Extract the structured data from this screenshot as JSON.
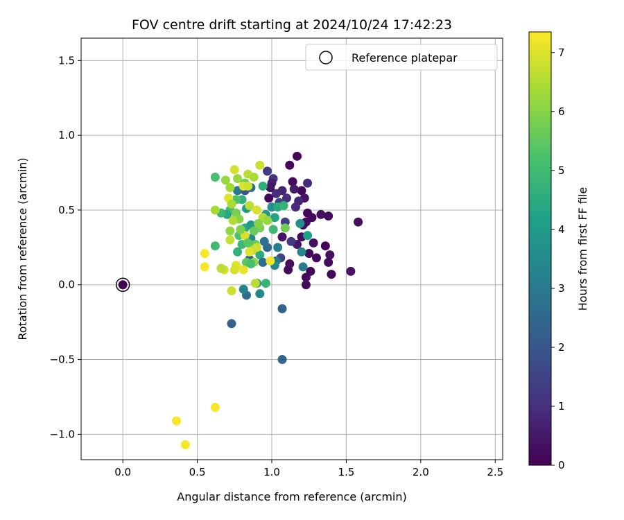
{
  "chart_data": {
    "type": "scatter",
    "title": "FOV centre drift starting at 2024/10/24 17:42:23",
    "xlabel": "Angular distance from reference (arcmin)",
    "ylabel": "Rotation from reference (arcmin)",
    "xlim": [
      -0.28,
      2.55
    ],
    "ylim": [
      -1.17,
      1.65
    ],
    "xticks": [
      "0.0",
      "0.5",
      "1.0",
      "1.5",
      "2.0",
      "2.5"
    ],
    "xtick_values": [
      0,
      0.5,
      1.0,
      1.5,
      2.0,
      2.5
    ],
    "yticks": [
      "−1.0",
      "−0.5",
      "0.0",
      "0.5",
      "1.0",
      "1.5"
    ],
    "ytick_values": [
      -1.0,
      -0.5,
      0,
      0.5,
      1.0,
      1.5
    ],
    "grid": true,
    "legend": {
      "label": "Reference platepar",
      "position": "top-right"
    },
    "reference_point": {
      "x": 0.0,
      "y": 0.0
    },
    "colorbar": {
      "label": "Hours from first FF file",
      "min": 0,
      "max": 7.35,
      "ticks": [
        "0",
        "1",
        "2",
        "3",
        "4",
        "5",
        "6",
        "7"
      ],
      "tick_values": [
        0,
        1,
        2,
        3,
        4,
        5,
        6,
        7
      ],
      "colormap": "viridis"
    },
    "points": [
      {
        "x": 1.17,
        "y": 0.86,
        "h": 0.1
      },
      {
        "x": 1.12,
        "y": 0.8,
        "h": 0.1
      },
      {
        "x": 1.2,
        "y": 0.63,
        "h": 0.1
      },
      {
        "x": 1.14,
        "y": 0.69,
        "h": 0.2
      },
      {
        "x": 1.24,
        "y": 0.48,
        "h": 0.1
      },
      {
        "x": 1.27,
        "y": 0.45,
        "h": 0.2
      },
      {
        "x": 1.33,
        "y": 0.47,
        "h": 0.3
      },
      {
        "x": 1.38,
        "y": 0.46,
        "h": 0.2
      },
      {
        "x": 1.58,
        "y": 0.42,
        "h": 0.3
      },
      {
        "x": 1.53,
        "y": 0.09,
        "h": 0.4
      },
      {
        "x": 1.4,
        "y": 0.07,
        "h": 0.2
      },
      {
        "x": 1.39,
        "y": 0.2,
        "h": 0.3
      },
      {
        "x": 1.38,
        "y": 0.15,
        "h": 0.2
      },
      {
        "x": 1.36,
        "y": 0.26,
        "h": 0.1
      },
      {
        "x": 1.3,
        "y": 0.18,
        "h": 0.2
      },
      {
        "x": 1.28,
        "y": 0.28,
        "h": 0.3
      },
      {
        "x": 1.25,
        "y": 0.21,
        "h": 0.2
      },
      {
        "x": 1.26,
        "y": 0.09,
        "h": 0.1
      },
      {
        "x": 1.23,
        "y": 0.05,
        "h": 0.1
      },
      {
        "x": 1.23,
        "y": 0.0,
        "h": 0.2
      },
      {
        "x": 1.2,
        "y": 0.32,
        "h": 0.3
      },
      {
        "x": 1.17,
        "y": 0.27,
        "h": 0.5
      },
      {
        "x": 1.21,
        "y": 0.4,
        "h": 0.3
      },
      {
        "x": 1.23,
        "y": 0.42,
        "h": 0.2
      },
      {
        "x": 1.22,
        "y": 0.58,
        "h": 0.4
      },
      {
        "x": 1.24,
        "y": 0.68,
        "h": 0.9
      },
      {
        "x": 1.18,
        "y": 0.56,
        "h": 0.8
      },
      {
        "x": 1.16,
        "y": 0.52,
        "h": 0.9
      },
      {
        "x": 1.15,
        "y": 0.64,
        "h": 0.6
      },
      {
        "x": 1.1,
        "y": 0.58,
        "h": 1.0
      },
      {
        "x": 1.07,
        "y": 0.63,
        "h": 0.8
      },
      {
        "x": 1.03,
        "y": 0.61,
        "h": 1.0
      },
      {
        "x": 1.05,
        "y": 0.55,
        "h": 1.5
      },
      {
        "x": 1.01,
        "y": 0.71,
        "h": 1.1
      },
      {
        "x": 0.97,
        "y": 0.76,
        "h": 1.3
      },
      {
        "x": 1.0,
        "y": 0.68,
        "h": 0.6
      },
      {
        "x": 0.98,
        "y": 0.58,
        "h": 0.2
      },
      {
        "x": 0.99,
        "y": 0.65,
        "h": 0.4
      },
      {
        "x": 1.07,
        "y": 0.32,
        "h": 0.4
      },
      {
        "x": 1.09,
        "y": 0.42,
        "h": 1.4
      },
      {
        "x": 1.13,
        "y": 0.29,
        "h": 1.2
      },
      {
        "x": 1.11,
        "y": 0.1,
        "h": 0.2
      },
      {
        "x": 1.12,
        "y": 0.14,
        "h": 0.3
      },
      {
        "x": 1.06,
        "y": 0.18,
        "h": 1.5
      },
      {
        "x": 1.07,
        "y": -0.16,
        "h": 2.3
      },
      {
        "x": 1.07,
        "y": -0.5,
        "h": 2.4
      },
      {
        "x": 0.73,
        "y": -0.26,
        "h": 2.3
      },
      {
        "x": 0.83,
        "y": -0.07,
        "h": 2.6
      },
      {
        "x": 0.81,
        "y": -0.03,
        "h": 3.3
      },
      {
        "x": 0.92,
        "y": -0.06,
        "h": 3.4
      },
      {
        "x": 0.9,
        "y": 0.01,
        "h": 3.8
      },
      {
        "x": 0.96,
        "y": 0.01,
        "h": 4.8
      },
      {
        "x": 0.89,
        "y": 0.01,
        "h": 6.6
      },
      {
        "x": 0.73,
        "y": -0.04,
        "h": 6.8
      },
      {
        "x": 1.21,
        "y": 0.12,
        "h": 3.0
      },
      {
        "x": 1.2,
        "y": 0.22,
        "h": 3.4
      },
      {
        "x": 1.24,
        "y": 0.33,
        "h": 4.2
      },
      {
        "x": 1.19,
        "y": 0.41,
        "h": 3.6
      },
      {
        "x": 1.04,
        "y": 0.25,
        "h": 3.1
      },
      {
        "x": 1.03,
        "y": 0.16,
        "h": 2.9
      },
      {
        "x": 1.02,
        "y": 0.13,
        "h": 3.5
      },
      {
        "x": 0.97,
        "y": 0.25,
        "h": 2.5
      },
      {
        "x": 0.95,
        "y": 0.29,
        "h": 2.8
      },
      {
        "x": 0.92,
        "y": 0.2,
        "h": 4.5
      },
      {
        "x": 0.94,
        "y": 0.15,
        "h": 2.6
      },
      {
        "x": 0.85,
        "y": 0.17,
        "h": 2.4
      },
      {
        "x": 0.83,
        "y": 0.15,
        "h": 5.5
      },
      {
        "x": 0.8,
        "y": 0.27,
        "h": 5.0
      },
      {
        "x": 0.77,
        "y": 0.22,
        "h": 4.7
      },
      {
        "x": 0.78,
        "y": 0.33,
        "h": 5.3
      },
      {
        "x": 0.82,
        "y": 0.38,
        "h": 4.5
      },
      {
        "x": 0.86,
        "y": 0.4,
        "h": 3.9
      },
      {
        "x": 0.86,
        "y": 0.31,
        "h": 3.4
      },
      {
        "x": 0.89,
        "y": 0.27,
        "h": 5.6
      },
      {
        "x": 0.92,
        "y": 0.38,
        "h": 5.8
      },
      {
        "x": 0.96,
        "y": 0.47,
        "h": 4.0
      },
      {
        "x": 1.0,
        "y": 0.52,
        "h": 3.7
      },
      {
        "x": 1.02,
        "y": 0.45,
        "h": 4.3
      },
      {
        "x": 1.01,
        "y": 0.37,
        "h": 5.0
      },
      {
        "x": 1.04,
        "y": 0.52,
        "h": 4.5
      },
      {
        "x": 1.09,
        "y": 0.38,
        "h": 5.7
      },
      {
        "x": 1.08,
        "y": 0.53,
        "h": 4.8
      },
      {
        "x": 0.94,
        "y": 0.66,
        "h": 4.6
      },
      {
        "x": 0.86,
        "y": 0.65,
        "h": 2.6
      },
      {
        "x": 0.82,
        "y": 0.63,
        "h": 1.9
      },
      {
        "x": 0.77,
        "y": 0.63,
        "h": 3.0
      },
      {
        "x": 0.8,
        "y": 0.57,
        "h": 4.7
      },
      {
        "x": 0.76,
        "y": 0.57,
        "h": 5.3
      },
      {
        "x": 0.83,
        "y": 0.51,
        "h": 4.1
      },
      {
        "x": 0.72,
        "y": 0.5,
        "h": 5.1
      },
      {
        "x": 0.7,
        "y": 0.47,
        "h": 4.4
      },
      {
        "x": 0.66,
        "y": 0.48,
        "h": 4.9
      },
      {
        "x": 0.62,
        "y": 0.72,
        "h": 5.2
      },
      {
        "x": 0.62,
        "y": 0.5,
        "h": 6.4
      },
      {
        "x": 0.62,
        "y": 0.26,
        "h": 5.0
      },
      {
        "x": 0.69,
        "y": 0.7,
        "h": 6.2
      },
      {
        "x": 0.72,
        "y": 0.65,
        "h": 6.3
      },
      {
        "x": 0.75,
        "y": 0.77,
        "h": 6.9
      },
      {
        "x": 0.77,
        "y": 0.71,
        "h": 6.2
      },
      {
        "x": 0.82,
        "y": 0.68,
        "h": 5.7
      },
      {
        "x": 0.84,
        "y": 0.74,
        "h": 6.6
      },
      {
        "x": 0.88,
        "y": 0.72,
        "h": 6.4
      },
      {
        "x": 0.92,
        "y": 0.8,
        "h": 6.8
      },
      {
        "x": 0.81,
        "y": 0.66,
        "h": 7.0
      },
      {
        "x": 0.84,
        "y": 0.66,
        "h": 6.8
      },
      {
        "x": 0.76,
        "y": 0.48,
        "h": 5.8
      },
      {
        "x": 0.78,
        "y": 0.44,
        "h": 6.0
      },
      {
        "x": 0.74,
        "y": 0.43,
        "h": 6.5
      },
      {
        "x": 0.72,
        "y": 0.36,
        "h": 6.1
      },
      {
        "x": 0.72,
        "y": 0.3,
        "h": 6.7
      },
      {
        "x": 0.71,
        "y": 0.58,
        "h": 7.0
      },
      {
        "x": 0.73,
        "y": 0.54,
        "h": 6.4
      },
      {
        "x": 0.85,
        "y": 0.53,
        "h": 6.6
      },
      {
        "x": 0.9,
        "y": 0.5,
        "h": 6.9
      },
      {
        "x": 0.94,
        "y": 0.45,
        "h": 6.5
      },
      {
        "x": 0.97,
        "y": 0.43,
        "h": 6.2
      },
      {
        "x": 0.91,
        "y": 0.41,
        "h": 6.0
      },
      {
        "x": 0.88,
        "y": 0.36,
        "h": 5.6
      },
      {
        "x": 0.82,
        "y": 0.33,
        "h": 6.9
      },
      {
        "x": 0.79,
        "y": 0.37,
        "h": 5.9
      },
      {
        "x": 0.84,
        "y": 0.28,
        "h": 5.4
      },
      {
        "x": 0.87,
        "y": 0.23,
        "h": 6.6
      },
      {
        "x": 0.9,
        "y": 0.25,
        "h": 6.8
      },
      {
        "x": 0.85,
        "y": 0.22,
        "h": 7.0
      },
      {
        "x": 0.88,
        "y": 0.15,
        "h": 6.1
      },
      {
        "x": 0.86,
        "y": 0.14,
        "h": 5.2
      },
      {
        "x": 0.81,
        "y": 0.1,
        "h": 7.1
      },
      {
        "x": 0.76,
        "y": 0.13,
        "h": 7.0
      },
      {
        "x": 0.75,
        "y": 0.1,
        "h": 6.9
      },
      {
        "x": 0.99,
        "y": 0.16,
        "h": 7.2
      },
      {
        "x": 0.68,
        "y": 0.1,
        "h": 6.9
      },
      {
        "x": 0.66,
        "y": 0.11,
        "h": 6.6
      },
      {
        "x": 0.55,
        "y": 0.21,
        "h": 7.3
      },
      {
        "x": 0.55,
        "y": 0.12,
        "h": 7.3
      },
      {
        "x": 0.62,
        "y": -0.82,
        "h": 7.3
      },
      {
        "x": 0.36,
        "y": -0.91,
        "h": 7.3
      },
      {
        "x": 0.42,
        "y": -1.07,
        "h": 7.3
      }
    ]
  }
}
